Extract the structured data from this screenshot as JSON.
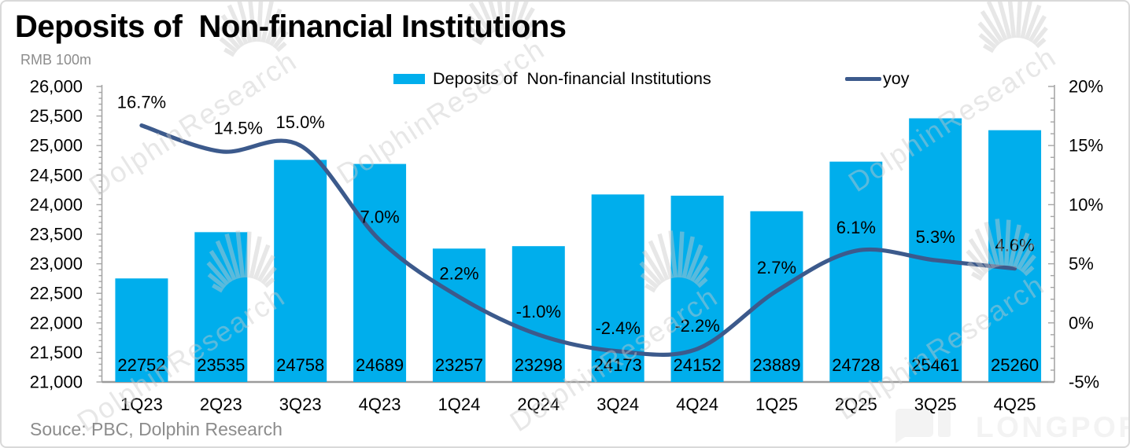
{
  "title": "Deposits of  Non-financial Institutions",
  "unit_label": "RMB 100m",
  "legend": {
    "bar_label": "Deposits of  Non-financial Institutions",
    "line_label": "yoy"
  },
  "source_note": "Souce: PBC, Dolphin Research",
  "watermark_text": "DolphinResearch",
  "brand": "LONGPORT",
  "colors": {
    "bar": "#00AEEC",
    "line": "#3C5A8C",
    "axis": "#a6a6a6",
    "label_text": "#000000",
    "muted_text": "#8c8c8c",
    "watermark": "#c9c9c9",
    "brand": "#f3f3f3"
  },
  "chart_data": {
    "type": "bar",
    "subtype": "bar+line combo, dual axis",
    "title": "Deposits of  Non-financial Institutions",
    "xlabel": "",
    "ylabel_left": "RMB 100m",
    "ylabel_right": "yoy %",
    "grid": false,
    "legend_position": "top",
    "categories": [
      "1Q23",
      "2Q23",
      "3Q23",
      "4Q23",
      "1Q24",
      "2Q24",
      "3Q24",
      "4Q24",
      "1Q25",
      "2Q25",
      "3Q25",
      "4Q25"
    ],
    "series": [
      {
        "name": "Deposits of  Non-financial Institutions",
        "type": "bar",
        "axis": "left",
        "values": [
          22752,
          23535,
          24758,
          24689,
          23257,
          23298,
          24173,
          24152,
          23889,
          24728,
          25461,
          25260
        ],
        "value_labels": [
          "22752",
          "23535",
          "24758",
          "24689",
          "23257",
          "23298",
          "24173",
          "24152",
          "23889",
          "24728",
          "25461",
          "25260"
        ],
        "label_position": "inside-bottom"
      },
      {
        "name": "yoy",
        "type": "line",
        "axis": "right",
        "smooth": true,
        "values": [
          16.7,
          14.5,
          15.0,
          7.0,
          2.2,
          -1.0,
          -2.4,
          -2.2,
          2.7,
          6.1,
          5.3,
          4.6
        ],
        "value_labels": [
          "16.7%",
          "14.5%",
          "15.0%",
          "7.0%",
          "2.2%",
          "-1.0%",
          "-2.4%",
          "-2.2%",
          "2.7%",
          "6.1%",
          "5.3%",
          "4.6%"
        ],
        "label_position": "above-point"
      }
    ],
    "left_axis": {
      "min": 21000,
      "max": 26000,
      "step": 500,
      "tick_labels": [
        "26,000",
        "25,500",
        "25,000",
        "24,500",
        "24,000",
        "23,500",
        "23,000",
        "22,500",
        "22,000",
        "21,500",
        "21,000"
      ]
    },
    "right_axis": {
      "min": -5,
      "max": 20,
      "step": 5,
      "tick_labels": [
        "20%",
        "15%",
        "10%",
        "5%",
        "0%",
        "-5%"
      ]
    }
  }
}
